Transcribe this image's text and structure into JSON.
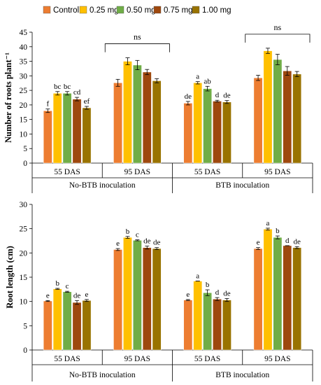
{
  "legend": [
    {
      "label": "Control",
      "color": "#ED7D31"
    },
    {
      "label": "0.25 mg",
      "color": "#FFC000"
    },
    {
      "label": "0.50 mg",
      "color": "#70AD47"
    },
    {
      "label": "0.75 mg",
      "color": "#9E480E"
    },
    {
      "label": "1.00 mg",
      "color": "#997300"
    }
  ],
  "chart_data": [
    {
      "type": "bar",
      "ylabel": "Number of roots plant⁻¹",
      "ylim": [
        0,
        45
      ],
      "yticks": [
        0,
        5,
        10,
        15,
        20,
        25,
        30,
        35,
        40,
        45
      ],
      "group_labels": [
        "No-BTB inoculation",
        "BTB inoculation"
      ],
      "categories": [
        "55 DAS",
        "95 DAS",
        "55 DAS",
        "95 DAS"
      ],
      "series": [
        {
          "name": "Control",
          "values": [
            18.0,
            27.6,
            20.6,
            29.3
          ],
          "errors": [
            0.6,
            1.2,
            0.6,
            0.9
          ],
          "labels": [
            "f",
            "",
            "de",
            ""
          ]
        },
        {
          "name": "0.25 mg",
          "values": [
            24.0,
            35.0,
            27.6,
            38.6
          ],
          "errors": [
            0.6,
            1.2,
            0.4,
            0.9
          ],
          "labels": [
            "bc",
            "",
            "a",
            ""
          ]
        },
        {
          "name": "0.50 mg",
          "values": [
            24.0,
            33.7,
            25.6,
            35.6
          ],
          "errors": [
            0.6,
            1.6,
            0.8,
            1.8
          ],
          "labels": [
            "bc",
            "",
            "ab",
            ""
          ]
        },
        {
          "name": "0.75 mg",
          "values": [
            22.0,
            31.3,
            21.3,
            31.7
          ],
          "errors": [
            0.6,
            0.9,
            0.3,
            1.5
          ],
          "labels": [
            "cd",
            "",
            "d",
            ""
          ]
        },
        {
          "name": "1.00 mg",
          "values": [
            19.0,
            28.3,
            21.0,
            30.6
          ],
          "errors": [
            0.5,
            0.7,
            0.5,
            0.9
          ],
          "labels": [
            "ef",
            "",
            "de",
            ""
          ]
        }
      ],
      "brackets": [
        {
          "category_index": 1,
          "label": "ns"
        },
        {
          "category_index": 3,
          "label": "ns"
        }
      ]
    },
    {
      "type": "bar",
      "ylabel": "Root length (cm)",
      "ylim": [
        0,
        30
      ],
      "yticks": [
        0,
        5,
        10,
        15,
        20,
        25,
        30
      ],
      "group_labels": [
        "No-BTB inoculation",
        "BTB inoculation"
      ],
      "categories": [
        "55 DAS",
        "95 DAS",
        "55 DAS",
        "95 DAS"
      ],
      "series": [
        {
          "name": "Control",
          "values": [
            10.1,
            20.7,
            10.3,
            20.9
          ],
          "errors": [
            0.1,
            0.2,
            0.1,
            0.2
          ],
          "labels": [
            "e",
            "e",
            "e",
            "e"
          ]
        },
        {
          "name": "0.25 mg",
          "values": [
            12.6,
            23.2,
            14.2,
            24.9
          ],
          "errors": [
            0.1,
            0.2,
            0.0,
            0.2
          ],
          "labels": [
            "b",
            "b",
            "a",
            "a"
          ]
        },
        {
          "name": "0.50 mg",
          "values": [
            12.0,
            22.6,
            11.8,
            23.2
          ],
          "errors": [
            0.1,
            0.1,
            0.6,
            0.3
          ],
          "labels": [
            "c",
            "c",
            "b",
            "b"
          ]
        },
        {
          "name": "0.75 mg",
          "values": [
            9.8,
            21.1,
            10.5,
            21.5
          ],
          "errors": [
            0.4,
            0.3,
            0.3,
            0.0
          ],
          "labels": [
            "de",
            "de",
            "d",
            "d"
          ]
        },
        {
          "name": "1.00 mg",
          "values": [
            10.2,
            20.9,
            10.3,
            21.1
          ],
          "errors": [
            0.2,
            0.2,
            0.3,
            0.2
          ],
          "labels": [
            "e",
            "de",
            "de",
            "de"
          ]
        }
      ],
      "brackets": []
    }
  ]
}
